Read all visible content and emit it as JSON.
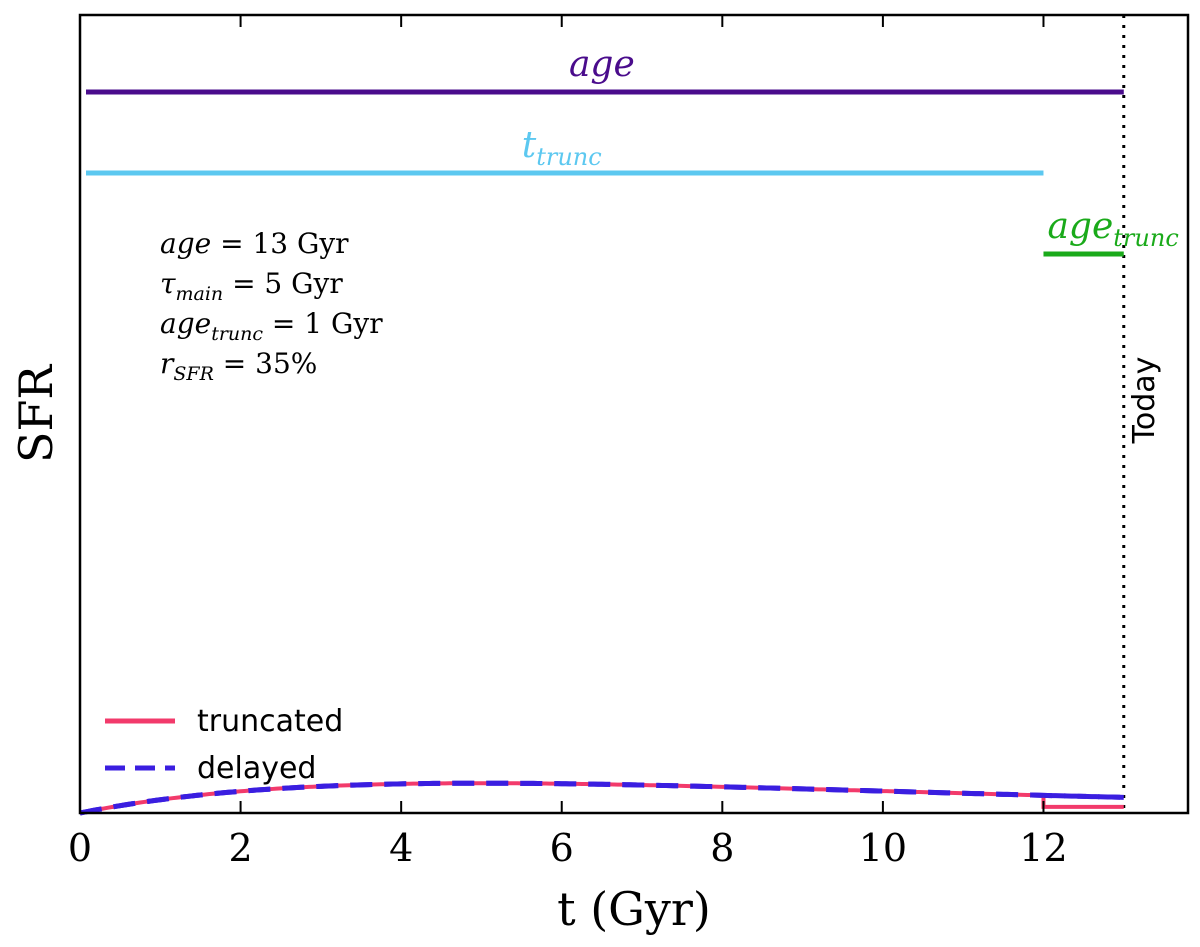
{
  "chart_data": {
    "type": "line",
    "title": "",
    "xlabel": "t (Gyr)",
    "ylabel": "SFR",
    "xlim": [
      0,
      13.8
    ],
    "ylim": [
      0,
      1.97
    ],
    "xticks": [
      0,
      2,
      4,
      6,
      8,
      10,
      12
    ],
    "yticks": [],
    "grid": false,
    "legend_position": "lower-left",
    "parameters": {
      "age": 13,
      "tau_main": 5,
      "age_trunc": 1,
      "r_sfr": 0.35
    },
    "series": [
      {
        "name": "truncated",
        "style": "solid",
        "color": "#f23a6b",
        "formula": "t/tau^2 * exp(-t/tau) for t <= 12; r_SFR * SFR(12) for 12 < t <= 13"
      },
      {
        "name": "delayed",
        "style": "dashed",
        "color": "#3a1ee0",
        "formula": "t/tau^2 * exp(-t/tau) for 0 <= t <= 13"
      }
    ],
    "range_bars": [
      {
        "name": "age",
        "base": "age",
        "sub": "",
        "start": 0,
        "end": 13,
        "level": 1.78,
        "color": "#4a0c8c"
      },
      {
        "name": "t_trunc",
        "base": "t",
        "sub": "trunc",
        "start": 0,
        "end": 12,
        "level": 1.58,
        "color": "#5cc8f0"
      },
      {
        "name": "age_trunc",
        "base": "age",
        "sub": "trunc",
        "start": 12,
        "end": 13,
        "level": 1.38,
        "color": "#1aaa1a"
      }
    ],
    "annotations": {
      "today_line_x": 13,
      "today_label": "Today",
      "param_lines": [
        {
          "base": "age",
          "sub": "",
          "rest": " = 13 Gyr"
        },
        {
          "base": "τ",
          "sub": "main",
          "rest": " = 5 Gyr"
        },
        {
          "base": "age",
          "sub": "trunc",
          "rest": " = 1 Gyr"
        },
        {
          "base": "r",
          "sub": "SFR",
          "rest": " = 35%"
        }
      ]
    }
  }
}
